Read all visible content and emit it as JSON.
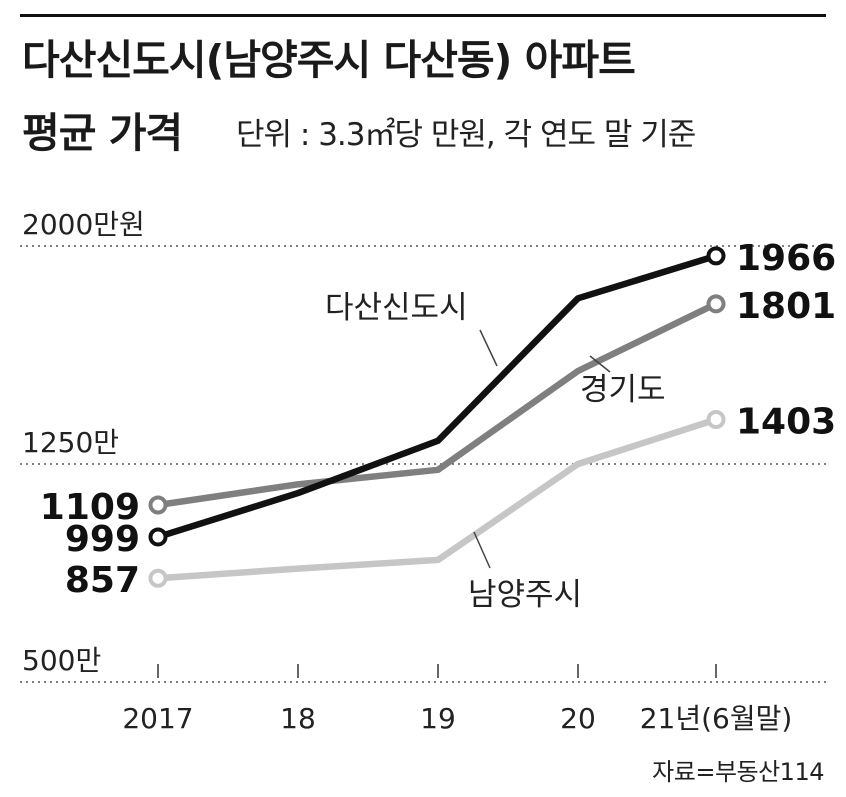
{
  "title_line1": "다산신도시(남양주시 다산동) 아파트",
  "title_line2": "평균 가격",
  "subtitle": "단위 : 3.3㎡당 만원, 각 연도 말 기준",
  "source": "자료=부동산114",
  "chart_data": {
    "type": "line",
    "categories": [
      "2017",
      "18",
      "19",
      "20",
      "21년(6월말)"
    ],
    "y_tick_labels": [
      "2000만원",
      "1250만",
      "500만"
    ],
    "y_ticks": [
      2000,
      1250,
      500
    ],
    "ylim": [
      500,
      2000
    ],
    "grid": "dotted horizontal at 2000, 1250, 500",
    "series": [
      {
        "name": "다산신도시",
        "color": "#111111",
        "values": [
          999,
          1150,
          1330,
          1820,
          1966
        ],
        "start_label": "999",
        "end_label": "1966"
      },
      {
        "name": "경기도",
        "color": "#7f7f7f",
        "values": [
          1109,
          1180,
          1230,
          1570,
          1801
        ],
        "start_label": "1109",
        "end_label": "1801"
      },
      {
        "name": "남양주시",
        "color": "#c6c6c6",
        "values": [
          857,
          890,
          920,
          1250,
          1403
        ],
        "start_label": "857",
        "end_label": "1403"
      }
    ]
  }
}
